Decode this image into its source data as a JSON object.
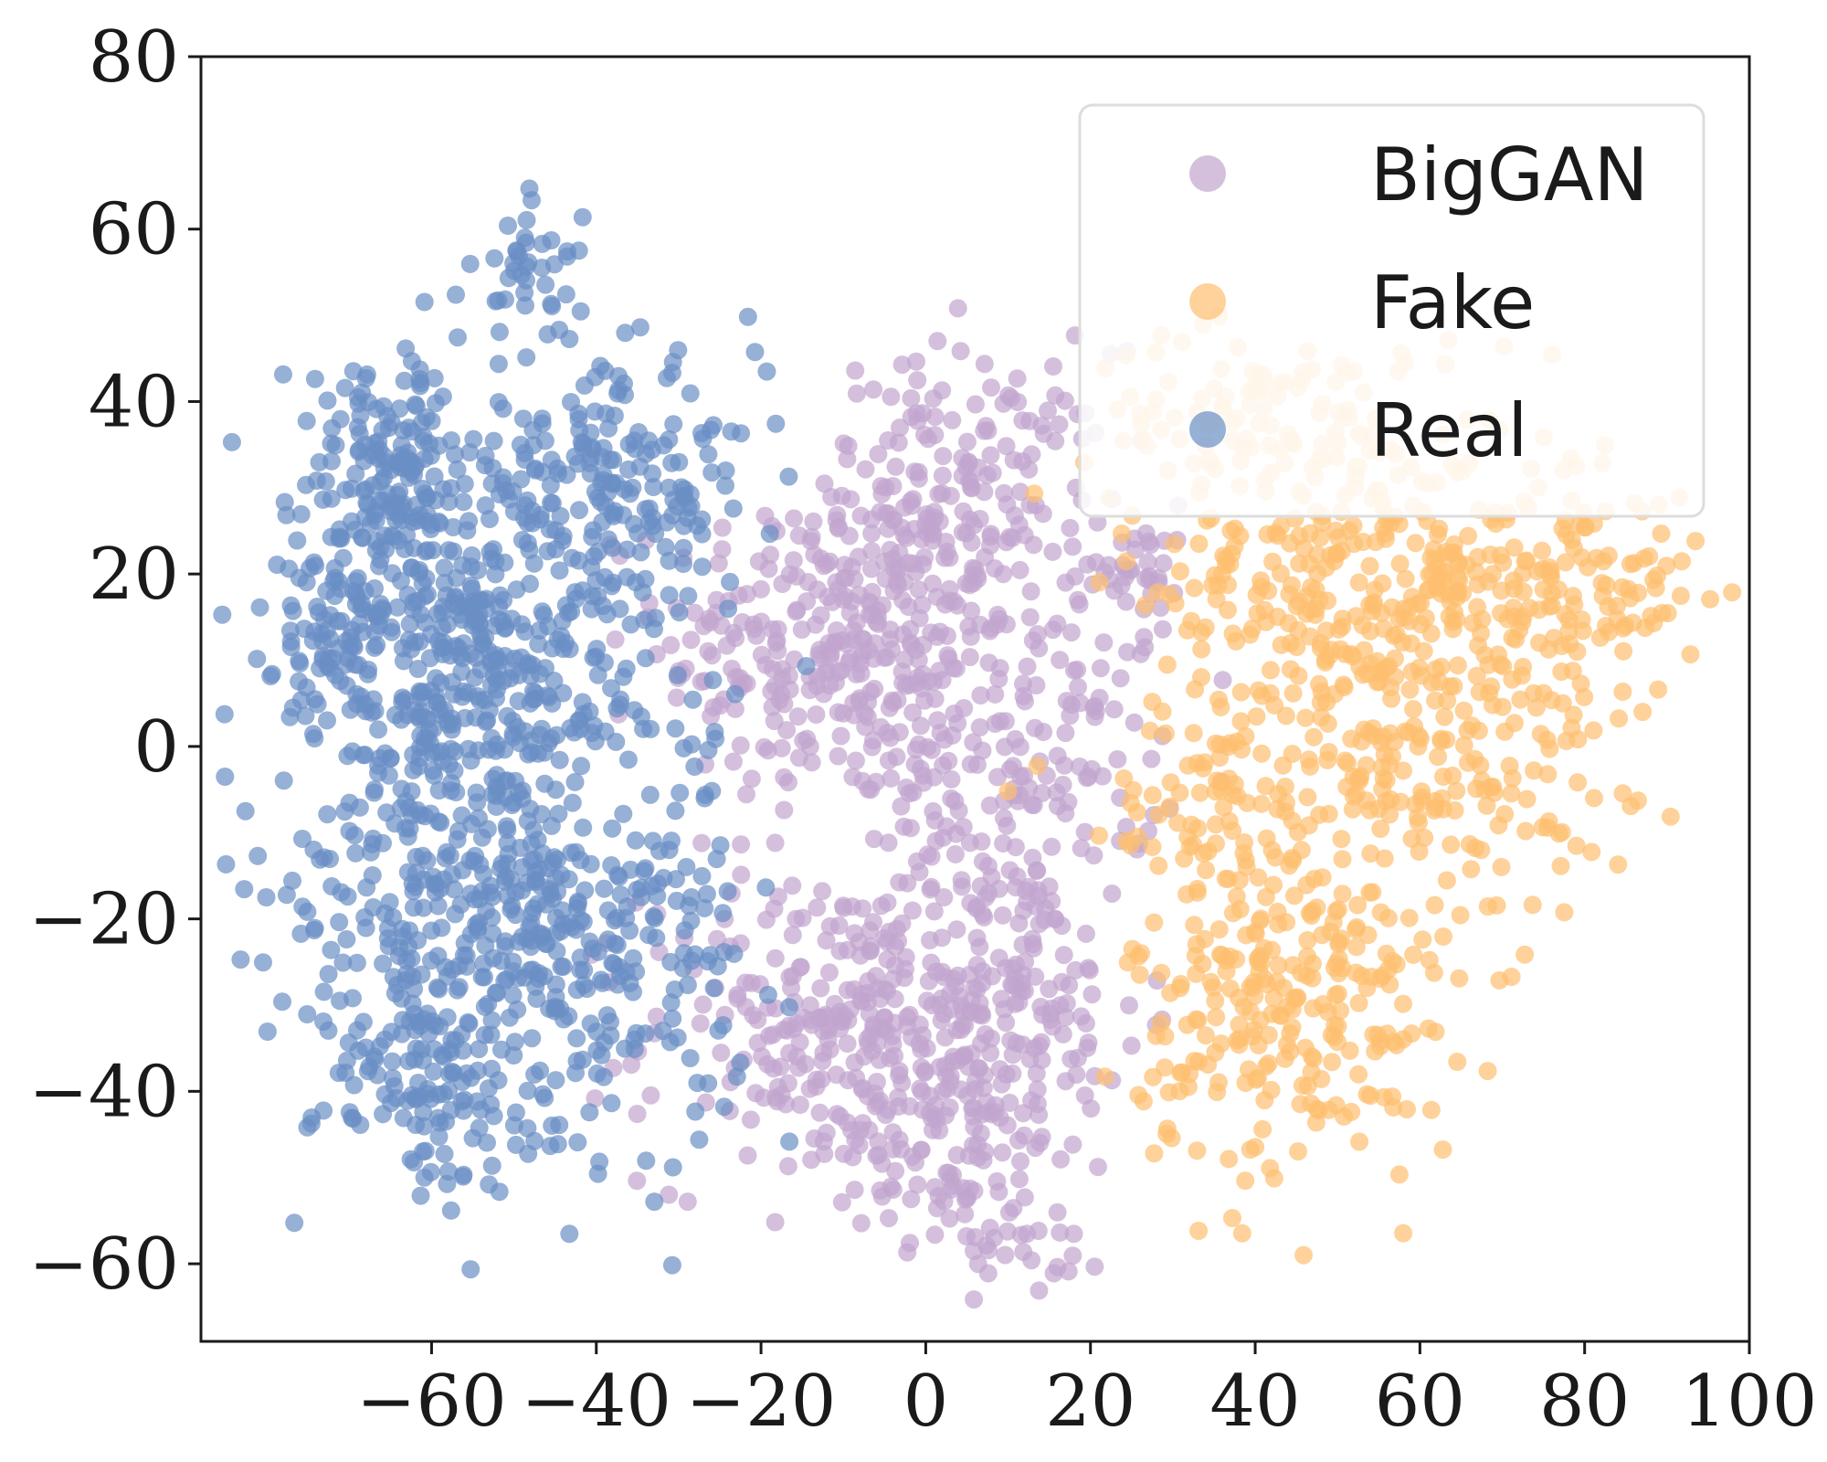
{
  "chart_data": {
    "type": "scatter",
    "title": "",
    "xlabel": "",
    "ylabel": "",
    "xlim": [
      -88,
      100
    ],
    "ylim": [
      -69,
      80
    ],
    "x_ticks": [
      -60,
      -40,
      -20,
      0,
      20,
      40,
      60,
      80,
      100
    ],
    "y_ticks": [
      -60,
      -40,
      -20,
      0,
      20,
      40,
      60,
      80
    ],
    "x_tick_labels": [
      "−60",
      "−40",
      "−20",
      "0",
      "20",
      "40",
      "60",
      "80",
      "100"
    ],
    "y_tick_labels": [
      "−60",
      "−40",
      "−20",
      "0",
      "20",
      "40",
      "60",
      "80"
    ],
    "grid": false,
    "legend_position": "top-right",
    "point_opacity": 0.7,
    "series": [
      {
        "name": "BigGAN",
        "color": "#c2a5cf",
        "clusters": [
          {
            "cx": -10,
            "cy": 12,
            "sx": 11,
            "sy": 10,
            "n": 320
          },
          {
            "cx": 5,
            "cy": 28,
            "sx": 9,
            "sy": 9,
            "n": 180
          },
          {
            "cx": 12,
            "cy": -3,
            "sx": 8,
            "sy": 8,
            "n": 130
          },
          {
            "cx": -10,
            "cy": -33,
            "sx": 12,
            "sy": 9,
            "n": 260
          },
          {
            "cx": 8,
            "cy": -30,
            "sx": 9,
            "sy": 10,
            "n": 190
          },
          {
            "cx": 2,
            "cy": -48,
            "sx": 7,
            "sy": 5,
            "n": 70
          },
          {
            "cx": 14,
            "cy": -57,
            "sx": 4,
            "sy": 3,
            "n": 25
          },
          {
            "cx": 25,
            "cy": 20,
            "sx": 4,
            "sy": 4,
            "n": 40
          }
        ]
      },
      {
        "name": "Fake",
        "color": "#fdbf6f",
        "clusters": [
          {
            "cx": 55,
            "cy": 18,
            "sx": 14,
            "sy": 11,
            "n": 380
          },
          {
            "cx": 80,
            "cy": 18,
            "sx": 7,
            "sy": 6,
            "n": 90
          },
          {
            "cx": 60,
            "cy": -2,
            "sx": 12,
            "sy": 7,
            "n": 150
          },
          {
            "cx": 45,
            "cy": -30,
            "sx": 10,
            "sy": 10,
            "n": 260
          },
          {
            "cx": 40,
            "cy": 38,
            "sx": 10,
            "sy": 5,
            "n": 90
          },
          {
            "cx": 35,
            "cy": -8,
            "sx": 6,
            "sy": 6,
            "n": 60
          }
        ]
      },
      {
        "name": "Real",
        "color": "#6a8fc4",
        "clusters": [
          {
            "cx": -65,
            "cy": 32,
            "sx": 6,
            "sy": 7,
            "n": 170
          },
          {
            "cx": -70,
            "cy": 14,
            "sx": 5,
            "sy": 6,
            "n": 120
          },
          {
            "cx": -55,
            "cy": 10,
            "sx": 8,
            "sy": 8,
            "n": 180
          },
          {
            "cx": -38,
            "cy": 30,
            "sx": 9,
            "sy": 7,
            "n": 200
          },
          {
            "cx": -60,
            "cy": -15,
            "sx": 10,
            "sy": 10,
            "n": 260
          },
          {
            "cx": -40,
            "cy": -25,
            "sx": 9,
            "sy": 10,
            "n": 230
          },
          {
            "cx": -60,
            "cy": -38,
            "sx": 7,
            "sy": 7,
            "n": 130
          },
          {
            "cx": -48,
            "cy": 55,
            "sx": 3,
            "sy": 4,
            "n": 40
          },
          {
            "cx": -45,
            "cy": 5,
            "sx": 10,
            "sy": 12,
            "n": 120
          }
        ]
      }
    ]
  }
}
